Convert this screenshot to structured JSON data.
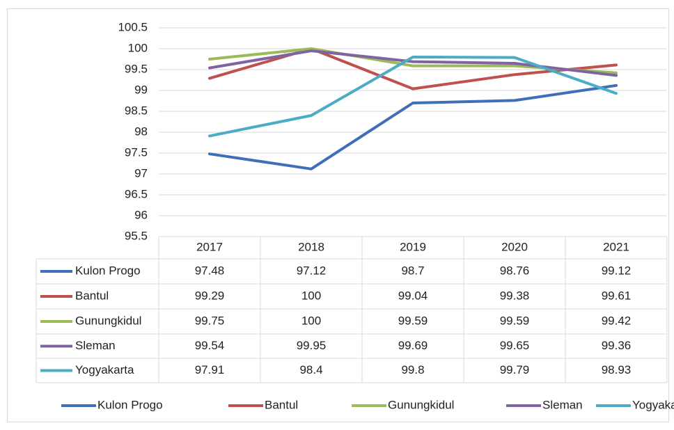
{
  "chart_data": {
    "type": "line",
    "categories": [
      "2017",
      "2018",
      "2019",
      "2020",
      "2021"
    ],
    "series": [
      {
        "name": "Kulon Progo",
        "color": "#3f6fb8",
        "values": [
          97.48,
          97.12,
          98.7,
          98.76,
          99.12
        ]
      },
      {
        "name": "Bantul",
        "color": "#c0504d",
        "values": [
          99.29,
          100,
          99.04,
          99.38,
          99.61
        ]
      },
      {
        "name": "Gunungkidul",
        "color": "#9bbb59",
        "values": [
          99.75,
          100,
          99.59,
          99.59,
          99.42
        ]
      },
      {
        "name": "Sleman",
        "color": "#8064a2",
        "values": [
          99.54,
          99.95,
          99.69,
          99.65,
          99.36
        ]
      },
      {
        "name": "Yogyakarta",
        "color": "#4bacc6",
        "values": [
          97.91,
          98.4,
          99.8,
          99.79,
          98.93
        ]
      }
    ],
    "ylim": [
      95.5,
      100.5
    ],
    "yticks": [
      95.5,
      96,
      96.5,
      97,
      97.5,
      98,
      98.5,
      99,
      99.5,
      100,
      100.5
    ],
    "grid": true,
    "data_table": true,
    "legend": "bottom"
  }
}
